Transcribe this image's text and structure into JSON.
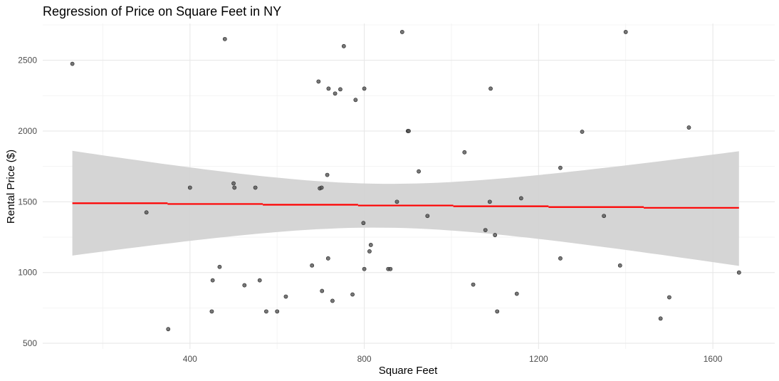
{
  "chart_data": {
    "type": "scatter",
    "title": "Regression of Price on Square Feet in NY",
    "xlabel": "Square Feet",
    "ylabel": "Rental Price ($)",
    "xlim": [
      62,
      1742
    ],
    "ylim": [
      460,
      2760
    ],
    "x_ticks": [
      400,
      800,
      1200,
      1600
    ],
    "x_tick_labels": [
      "400",
      "800",
      "1200",
      "1600"
    ],
    "y_ticks": [
      500,
      1000,
      1500,
      2000,
      2500
    ],
    "y_tick_labels": [
      "500",
      "1000",
      "1500",
      "2000",
      "2500"
    ],
    "grid": true,
    "colors": {
      "points": "#555555",
      "regression_line": "#ff0000",
      "confidence_band": "#d3d3d3"
    },
    "points": [
      {
        "x": 130,
        "y": 2475
      },
      {
        "x": 300,
        "y": 1425
      },
      {
        "x": 350,
        "y": 600
      },
      {
        "x": 400,
        "y": 1600
      },
      {
        "x": 450,
        "y": 725
      },
      {
        "x": 452,
        "y": 945
      },
      {
        "x": 468,
        "y": 1040
      },
      {
        "x": 480,
        "y": 2650
      },
      {
        "x": 500,
        "y": 1630
      },
      {
        "x": 502,
        "y": 1600
      },
      {
        "x": 525,
        "y": 910
      },
      {
        "x": 550,
        "y": 1600
      },
      {
        "x": 560,
        "y": 945
      },
      {
        "x": 575,
        "y": 725
      },
      {
        "x": 600,
        "y": 725
      },
      {
        "x": 620,
        "y": 830
      },
      {
        "x": 680,
        "y": 1050
      },
      {
        "x": 695,
        "y": 2350
      },
      {
        "x": 698,
        "y": 1595
      },
      {
        "x": 702,
        "y": 1600
      },
      {
        "x": 703,
        "y": 870
      },
      {
        "x": 715,
        "y": 1690
      },
      {
        "x": 717,
        "y": 1100
      },
      {
        "x": 718,
        "y": 2300
      },
      {
        "x": 727,
        "y": 800
      },
      {
        "x": 733,
        "y": 2265
      },
      {
        "x": 745,
        "y": 2295
      },
      {
        "x": 753,
        "y": 2600
      },
      {
        "x": 773,
        "y": 845
      },
      {
        "x": 780,
        "y": 2220
      },
      {
        "x": 798,
        "y": 1350
      },
      {
        "x": 800,
        "y": 2300
      },
      {
        "x": 800,
        "y": 1025
      },
      {
        "x": 812,
        "y": 1150
      },
      {
        "x": 815,
        "y": 1195
      },
      {
        "x": 855,
        "y": 1025
      },
      {
        "x": 860,
        "y": 1025
      },
      {
        "x": 875,
        "y": 1500
      },
      {
        "x": 887,
        "y": 2700
      },
      {
        "x": 900,
        "y": 2000
      },
      {
        "x": 902,
        "y": 2000
      },
      {
        "x": 925,
        "y": 1715
      },
      {
        "x": 945,
        "y": 1400
      },
      {
        "x": 1030,
        "y": 1850
      },
      {
        "x": 1050,
        "y": 915
      },
      {
        "x": 1078,
        "y": 1300
      },
      {
        "x": 1088,
        "y": 1500
      },
      {
        "x": 1090,
        "y": 2300
      },
      {
        "x": 1100,
        "y": 1265
      },
      {
        "x": 1105,
        "y": 725
      },
      {
        "x": 1150,
        "y": 850
      },
      {
        "x": 1160,
        "y": 1525
      },
      {
        "x": 1250,
        "y": 1740
      },
      {
        "x": 1250,
        "y": 1100
      },
      {
        "x": 1300,
        "y": 1995
      },
      {
        "x": 1350,
        "y": 1400
      },
      {
        "x": 1387,
        "y": 1050
      },
      {
        "x": 1400,
        "y": 2700
      },
      {
        "x": 1480,
        "y": 675
      },
      {
        "x": 1500,
        "y": 825
      },
      {
        "x": 1545,
        "y": 2025
      },
      {
        "x": 1660,
        "y": 1000
      }
    ],
    "regression": {
      "x_range": [
        130,
        1660
      ],
      "fit": [
        1490,
        1452
      ],
      "ci_lower": [
        1115,
        1045
      ],
      "ci_upper": [
        1855,
        1855
      ]
    }
  }
}
